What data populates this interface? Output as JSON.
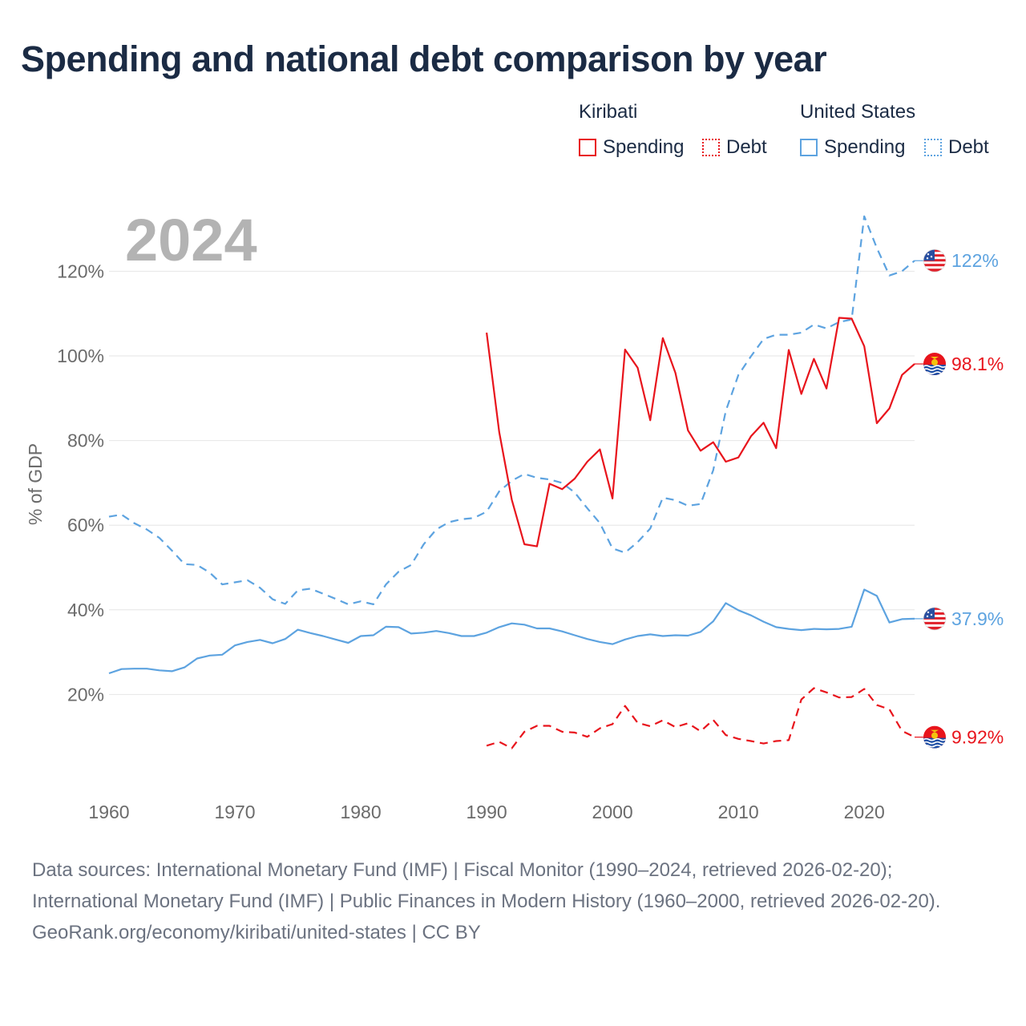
{
  "title": "Spending and national debt comparison by year",
  "legend": {
    "groups": [
      {
        "name": "Kiribati",
        "spending": "Spending",
        "debt": "Debt",
        "color": "#e8141c"
      },
      {
        "name": "United States",
        "spending": "Spending",
        "debt": "Debt",
        "color": "#5da3e0"
      }
    ]
  },
  "year_label": "2024",
  "chart_data": {
    "type": "line",
    "ylabel": "% of GDP",
    "xlim": [
      1960,
      2024
    ],
    "ylim": [
      0,
      130
    ],
    "x_ticks": [
      "1960",
      "1970",
      "1980",
      "1990",
      "2000",
      "2010",
      "2020"
    ],
    "y_ticks": [
      "20%",
      "40%",
      "60%",
      "80%",
      "100%",
      "120%"
    ],
    "series": [
      {
        "name": "United States Debt",
        "country": "United States",
        "kind": "Debt",
        "color": "#5da3e0",
        "dash": "10,7",
        "end_label": "122%",
        "start_year": 1960,
        "values": [
          62.0,
          62.5,
          60.5,
          59.0,
          57.0,
          54.0,
          50.8,
          50.6,
          48.8,
          46.0,
          46.5,
          47.0,
          45.2,
          42.5,
          41.4,
          44.6,
          45.0,
          43.8,
          42.6,
          41.3,
          42.0,
          41.3,
          46.0,
          49.0,
          50.6,
          55.5,
          59.0,
          60.7,
          61.4,
          61.7,
          63.2,
          68.0,
          70.5,
          72.1,
          71.2,
          70.8,
          70.0,
          67.7,
          64.0,
          60.5,
          54.5,
          53.5,
          56.0,
          59.2,
          66.5,
          65.9,
          64.6,
          65.0,
          73.0,
          87.0,
          95.5,
          99.9,
          104.0,
          105.0,
          105.0,
          105.5,
          107.4,
          106.5,
          108.0,
          108.6,
          133.0,
          125.5,
          119.0,
          120.0,
          122.5
        ]
      },
      {
        "name": "United States Spending",
        "country": "United States",
        "kind": "Spending",
        "color": "#5da3e0",
        "dash": "",
        "end_label": "37.9%",
        "start_year": 1960,
        "values": [
          25.0,
          26.0,
          26.1,
          26.1,
          25.7,
          25.5,
          26.4,
          28.5,
          29.2,
          29.4,
          31.6,
          32.4,
          32.9,
          32.1,
          33.1,
          35.3,
          34.5,
          33.8,
          33.0,
          32.2,
          33.8,
          34.0,
          36.0,
          35.9,
          34.4,
          34.6,
          35.0,
          34.5,
          33.8,
          33.8,
          34.6,
          35.9,
          36.8,
          36.5,
          35.6,
          35.6,
          34.9,
          34.0,
          33.1,
          32.4,
          31.9,
          33.0,
          33.8,
          34.2,
          33.8,
          34.0,
          33.9,
          34.8,
          37.3,
          41.6,
          39.9,
          38.7,
          37.2,
          35.9,
          35.5,
          35.2,
          35.5,
          35.4,
          35.5,
          36.0,
          44.8,
          43.3,
          37.0,
          37.8,
          37.9
        ]
      },
      {
        "name": "Kiribati Spending",
        "country": "Kiribati",
        "kind": "Spending",
        "color": "#e8141c",
        "dash": "",
        "end_label": "98.1%",
        "start_year": 1990,
        "values": [
          105.5,
          82.0,
          66.0,
          55.5,
          55.0,
          69.8,
          68.5,
          71.0,
          75.0,
          77.9,
          66.3,
          101.5,
          97.2,
          84.8,
          104.2,
          96.0,
          82.4,
          77.6,
          79.6,
          75.0,
          76.0,
          81.0,
          84.2,
          78.2,
          101.4,
          91.0,
          99.3,
          92.3,
          109.0,
          108.8,
          102.3,
          84.1,
          87.6,
          95.5,
          98.1
        ]
      },
      {
        "name": "Kiribati Debt",
        "country": "Kiribati",
        "kind": "Debt",
        "color": "#e8141c",
        "dash": "10,7",
        "end_label": "9.92%",
        "start_year": 1990,
        "values": [
          7.9,
          8.8,
          7.3,
          11.2,
          12.6,
          12.6,
          11.2,
          11.0,
          10.0,
          12.0,
          13.0,
          17.3,
          13.3,
          12.5,
          13.9,
          12.3,
          13.2,
          11.3,
          14.0,
          10.4,
          9.5,
          9.0,
          8.4,
          9.0,
          9.2,
          18.8,
          21.5,
          20.5,
          19.3,
          19.4,
          21.3,
          17.5,
          16.5,
          11.4,
          9.92
        ]
      }
    ]
  },
  "footer": {
    "sources": "Data sources: International Monetary Fund (IMF) | Fiscal Monitor (1990–2024, retrieved 2026-02-20); International Monetary Fund (IMF) | Public Finances in Modern History (1960–2000, retrieved 2026-02-20).",
    "credit": "GeoRank.org/economy/kiribati/united-states | CC BY"
  }
}
